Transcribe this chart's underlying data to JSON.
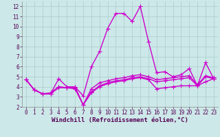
{
  "background_color": "#cce8e8",
  "grid_color": "#aacccc",
  "line_color": "#cc00cc",
  "marker": "+",
  "markersize": 4,
  "linewidth": 1.0,
  "xlabel": "Windchill (Refroidissement éolien,°C)",
  "xlabel_fontsize": 6.5,
  "tick_fontsize": 5.5,
  "xlim": [
    -0.5,
    23.5
  ],
  "ylim": [
    2,
    12.5
  ],
  "yticks": [
    2,
    3,
    4,
    5,
    6,
    7,
    8,
    9,
    10,
    11,
    12
  ],
  "xticks": [
    0,
    1,
    2,
    3,
    4,
    5,
    6,
    7,
    8,
    9,
    10,
    11,
    12,
    13,
    14,
    15,
    16,
    17,
    18,
    19,
    20,
    21,
    22,
    23
  ],
  "series": [
    {
      "x": [
        0,
        1,
        2,
        3,
        4,
        5,
        6,
        7,
        8,
        9,
        10,
        11,
        12,
        13,
        14,
        15,
        16,
        17,
        18,
        19,
        20,
        21,
        22,
        23
      ],
      "y": [
        4.7,
        3.7,
        3.3,
        3.3,
        4.8,
        4.0,
        4.0,
        3.1,
        6.0,
        7.5,
        9.8,
        11.3,
        11.3,
        10.5,
        12.0,
        8.5,
        5.4,
        5.5,
        5.0,
        5.2,
        5.8,
        4.1,
        6.4,
        4.8
      ]
    },
    {
      "x": [
        0,
        1,
        2,
        3,
        4,
        5,
        6,
        7,
        8,
        9,
        10,
        11,
        12,
        13,
        14,
        15,
        16,
        17,
        18,
        19,
        20,
        21,
        22,
        23
      ],
      "y": [
        4.7,
        3.7,
        3.3,
        3.3,
        4.0,
        3.9,
        3.9,
        2.2,
        3.8,
        4.4,
        4.6,
        4.8,
        4.9,
        5.1,
        5.2,
        5.0,
        4.7,
        4.8,
        4.9,
        5.0,
        5.1,
        4.2,
        5.1,
        4.9
      ]
    },
    {
      "x": [
        0,
        1,
        2,
        3,
        4,
        5,
        6,
        7,
        8,
        9,
        10,
        11,
        12,
        13,
        14,
        15,
        16,
        17,
        18,
        19,
        20,
        21,
        22,
        23
      ],
      "y": [
        4.7,
        3.7,
        3.3,
        3.4,
        4.0,
        3.9,
        4.0,
        2.2,
        3.5,
        4.1,
        4.4,
        4.6,
        4.7,
        4.9,
        5.0,
        4.8,
        4.5,
        4.6,
        4.7,
        4.8,
        4.9,
        4.1,
        5.0,
        4.8
      ]
    },
    {
      "x": [
        0,
        1,
        2,
        3,
        4,
        5,
        6,
        7,
        8,
        9,
        10,
        11,
        12,
        13,
        14,
        15,
        16,
        17,
        18,
        19,
        20,
        21,
        22,
        23
      ],
      "y": [
        4.7,
        3.7,
        3.3,
        3.3,
        3.9,
        3.9,
        3.8,
        2.2,
        3.4,
        4.0,
        4.3,
        4.5,
        4.6,
        4.8,
        4.9,
        4.7,
        3.8,
        3.9,
        4.0,
        4.1,
        4.1,
        4.1,
        4.5,
        4.8
      ]
    }
  ]
}
